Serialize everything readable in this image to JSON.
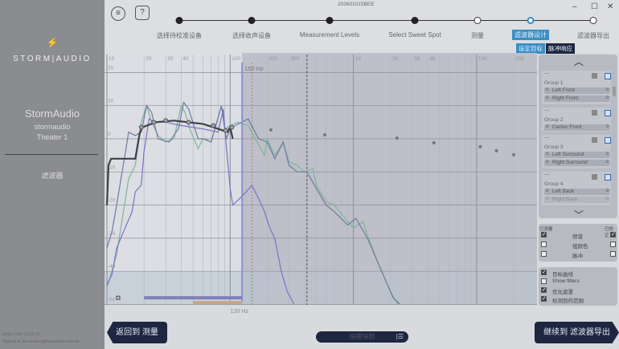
{
  "window": {
    "title": "202601015BEE",
    "minimize": "–",
    "maximize": "☐",
    "close": "✕"
  },
  "sidebar": {
    "logo_icon": "lightning-bolt-icon",
    "brand": "STORM|AUDIO",
    "device_name": "StormAudio",
    "device_user": "stormaudio",
    "theater": "Theater 1",
    "section": "滤波器",
    "version": "Dirac Live v3.13.16",
    "signed_in": "Signed in as service@haneway.com.tw"
  },
  "toolbar": {
    "menu_icon": "≡",
    "help_label": "?"
  },
  "steps": [
    {
      "label": "选择待校准设备",
      "state": "done"
    },
    {
      "label": "选择收声设备",
      "state": "done"
    },
    {
      "label": "Measurement Levels",
      "state": "done"
    },
    {
      "label": "Select Sweet Spot",
      "state": "done"
    },
    {
      "label": "测量",
      "state": "open"
    },
    {
      "label": "滤波器设计",
      "state": "current"
    },
    {
      "label": "滤波器导出",
      "state": "open"
    }
  ],
  "subtabs": {
    "target": "设定目标",
    "impulse": "脉冲响应"
  },
  "chart_data": {
    "type": "line",
    "x_scale": "log",
    "xlim": [
      10,
      30000
    ],
    "ylim": [
      -50,
      20
    ],
    "x_ticks": [
      "10",
      "20",
      "30",
      "40",
      "100",
      "200",
      "300",
      "1K",
      "2K",
      "3K",
      "4K",
      "10K",
      "20K"
    ],
    "y_ticks": [
      "20",
      "10",
      "0",
      "-10",
      "-20",
      "-30",
      "-40",
      "-50"
    ],
    "markers": {
      "low_cut": "120 Hz",
      "crossover": "150 Hz"
    },
    "grid": true,
    "target_curve": [
      [
        10,
        -20
      ],
      [
        10.3,
        -8
      ],
      [
        10.8,
        -6
      ],
      [
        17,
        -6
      ],
      [
        18.5,
        2
      ],
      [
        19.5,
        3.5
      ],
      [
        25,
        5
      ],
      [
        35,
        5.5
      ],
      [
        60,
        4.5
      ],
      [
        80,
        3
      ],
      [
        95,
        2
      ],
      [
        100,
        3.5
      ],
      [
        105,
        0
      ]
    ],
    "target_points": [
      [
        19,
        3.5
      ],
      [
        24,
        5
      ],
      [
        30,
        5.5
      ],
      [
        46,
        5
      ],
      [
        73,
        4
      ],
      [
        92,
        2.5
      ],
      [
        103,
        3.5
      ]
    ],
    "target_extension": [
      [
        214,
        2.7
      ],
      [
        586,
        1.2
      ],
      [
        2260,
        0.2
      ],
      [
        4500,
        -1.2
      ],
      [
        10700,
        -2.4
      ],
      [
        14500,
        -3.6
      ],
      [
        20000,
        -4.8
      ]
    ],
    "series": [
      {
        "color": "#7fb59a",
        "values": [
          [
            10,
            -45
          ],
          [
            12,
            -35
          ],
          [
            15,
            -12
          ],
          [
            17,
            -8
          ],
          [
            19,
            5
          ],
          [
            21,
            10
          ],
          [
            23,
            5
          ],
          [
            26,
            1
          ],
          [
            30,
            -1
          ],
          [
            35,
            0
          ],
          [
            40,
            10
          ],
          [
            43,
            8
          ],
          [
            47,
            3
          ],
          [
            55,
            -3
          ],
          [
            60,
            0
          ],
          [
            70,
            -1
          ],
          [
            85,
            10
          ],
          [
            90,
            3
          ],
          [
            100,
            4
          ],
          [
            115,
            5
          ],
          [
            140,
            4
          ],
          [
            160,
            0
          ],
          [
            190,
            -5
          ],
          [
            200,
            0
          ],
          [
            230,
            -5
          ],
          [
            270,
            -1
          ],
          [
            300,
            -7
          ],
          [
            350,
            -8
          ],
          [
            400,
            -10
          ],
          [
            470,
            -9
          ],
          [
            500,
            -14
          ],
          [
            600,
            -19
          ],
          [
            700,
            -20
          ],
          [
            900,
            -25
          ],
          [
            1000,
            -27
          ],
          [
            1200,
            -25
          ],
          [
            1300,
            -29
          ],
          [
            1600,
            -38
          ],
          [
            2000,
            -46
          ],
          [
            2300,
            -50
          ]
        ]
      },
      {
        "color": "#6f7c9e",
        "values": [
          [
            10,
            -33
          ],
          [
            11,
            -28
          ],
          [
            12,
            -20
          ],
          [
            13,
            -12
          ],
          [
            14,
            -5
          ],
          [
            15,
            2
          ],
          [
            17,
            1
          ],
          [
            19,
            2
          ],
          [
            21,
            10
          ],
          [
            23,
            8
          ],
          [
            26,
            0
          ],
          [
            32,
            -1
          ],
          [
            38,
            3
          ],
          [
            42,
            11
          ],
          [
            46,
            9
          ],
          [
            55,
            0
          ],
          [
            62,
            0
          ],
          [
            70,
            -1
          ],
          [
            85,
            10
          ],
          [
            93,
            0
          ],
          [
            100,
            3
          ],
          [
            110,
            4
          ],
          [
            140,
            6
          ],
          [
            170,
            0
          ],
          [
            200,
            -1
          ],
          [
            230,
            -6
          ],
          [
            270,
            -1
          ],
          [
            300,
            -8
          ],
          [
            350,
            -10
          ],
          [
            420,
            -10
          ],
          [
            500,
            -15
          ],
          [
            600,
            -20
          ],
          [
            700,
            -22
          ],
          [
            900,
            -26
          ],
          [
            1050,
            -24
          ],
          [
            1300,
            -30
          ],
          [
            1700,
            -40
          ],
          [
            2100,
            -48
          ],
          [
            2400,
            -50
          ]
        ]
      },
      {
        "color": "#7b72c8",
        "values": [
          [
            10,
            -44
          ],
          [
            11,
            -41
          ],
          [
            12,
            -33
          ],
          [
            14,
            -27
          ],
          [
            16,
            -22
          ],
          [
            17,
            -16
          ],
          [
            19,
            -14
          ],
          [
            20,
            -4
          ],
          [
            22,
            6
          ],
          [
            24,
            5
          ],
          [
            30,
            5
          ],
          [
            40,
            4
          ],
          [
            60,
            3
          ],
          [
            80,
            2
          ],
          [
            88,
            9
          ],
          [
            92,
            0
          ],
          [
            100,
            -15
          ],
          [
            105,
            -20
          ],
          [
            120,
            -18
          ],
          [
            135,
            -16
          ],
          [
            150,
            -14
          ],
          [
            170,
            -18
          ],
          [
            190,
            -22
          ],
          [
            210,
            -27
          ],
          [
            230,
            -30
          ],
          [
            260,
            -40
          ],
          [
            290,
            -46
          ],
          [
            330,
            -50
          ]
        ]
      }
    ]
  },
  "groups": [
    {
      "dash": "---",
      "name": "Group 1",
      "channels": [
        "Left Front",
        "Right Front"
      ]
    },
    {
      "dash": "---",
      "name": "Group 2",
      "channels": [
        "Center Front"
      ]
    },
    {
      "dash": "---",
      "name": "Group 3",
      "channels": [
        "Left Surround",
        "Right Surround"
      ]
    },
    {
      "dash": "---",
      "name": "Group 4",
      "channels": [
        "Left Back",
        "Right Back"
      ]
    }
  ],
  "display": {
    "measured": "已测量",
    "corrected": "已校正",
    "rows": [
      {
        "label": "频谱",
        "left": true,
        "right": true
      },
      {
        "label": "组颜色",
        "left": false,
        "right": false
      },
      {
        "label": "脉冲",
        "left": false,
        "right": false
      }
    ]
  },
  "options": [
    {
      "label": "目标曲线",
      "checked": true
    },
    {
      "label": "Show filters",
      "checked": false
    },
    {
      "label": "优化遮罩",
      "checked": true
    },
    {
      "label": "检测到的范围",
      "checked": true
    }
  ],
  "footer": {
    "back": "返回到 测量",
    "play": "拍摄快照",
    "next": "继续到 滤波器导出"
  }
}
